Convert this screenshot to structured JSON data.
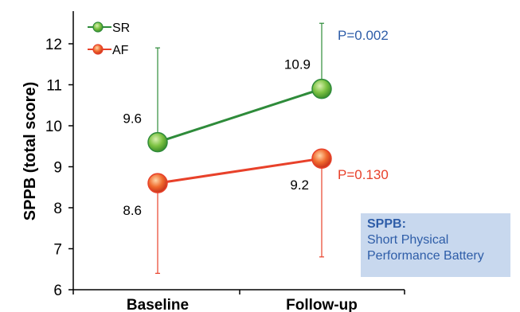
{
  "chart_data": {
    "type": "line",
    "title": "",
    "xlabel": "",
    "ylabel": "SPPB (total score)",
    "categories": [
      "Baseline",
      "Follow-up"
    ],
    "ylim": [
      6,
      12.5
    ],
    "yticks": [
      6,
      7,
      8,
      9,
      10,
      11,
      12
    ],
    "grid": false,
    "legend_position": "top-left",
    "series": [
      {
        "name": "SR",
        "values": [
          9.6,
          10.9
        ],
        "value_labels": [
          "9.6",
          "10.9"
        ],
        "error_upper": [
          11.9,
          12.5
        ],
        "color": "#2e8b3a",
        "p_value": "P=0.002",
        "p_color": "#2e5da8"
      },
      {
        "name": "AF",
        "values": [
          8.6,
          9.2
        ],
        "value_labels": [
          "8.6",
          "9.2"
        ],
        "error_lower": [
          6.4,
          6.8
        ],
        "color": "#e8412a",
        "p_value": "P=0.130",
        "p_color": "#e8412a"
      }
    ]
  },
  "note": {
    "title": "SPPB:",
    "lines": [
      "Short Physical",
      "Performance Battery"
    ]
  }
}
